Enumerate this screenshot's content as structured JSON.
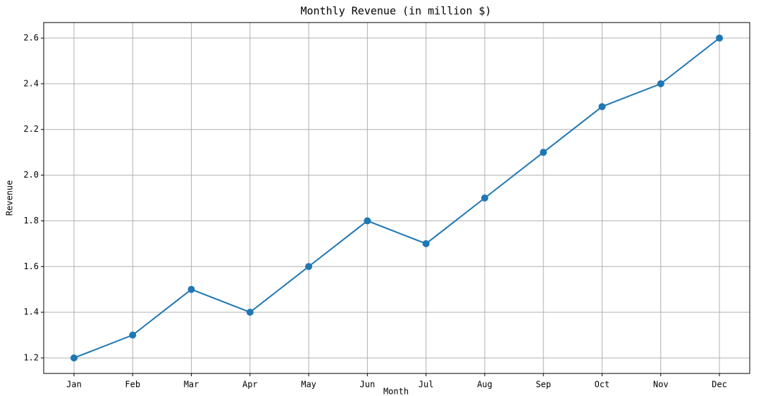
{
  "chart_data": {
    "type": "line",
    "title": "Monthly Revenue (in million $)",
    "x_label": "Month",
    "y_label": "Revenue",
    "categories": [
      "Jan",
      "Feb",
      "Mar",
      "Apr",
      "May",
      "Jun",
      "Jul",
      "Aug",
      "Sep",
      "Oct",
      "Nov",
      "Dec"
    ],
    "series": [
      {
        "name": "Revenue",
        "color": "#1f77b4",
        "values": [
          1.2,
          1.3,
          1.5,
          1.4,
          1.6,
          1.8,
          1.7,
          1.9,
          2.1,
          2.3,
          2.4,
          2.6
        ]
      }
    ],
    "ylim": [
      1.132,
      2.668
    ],
    "yticks": [
      1.2,
      1.4,
      1.6,
      1.8,
      {
        "value": 2,
        "label": "2.0"
      },
      2.2,
      2.4,
      2.6
    ],
    "grid": true,
    "marker": "circle"
  }
}
